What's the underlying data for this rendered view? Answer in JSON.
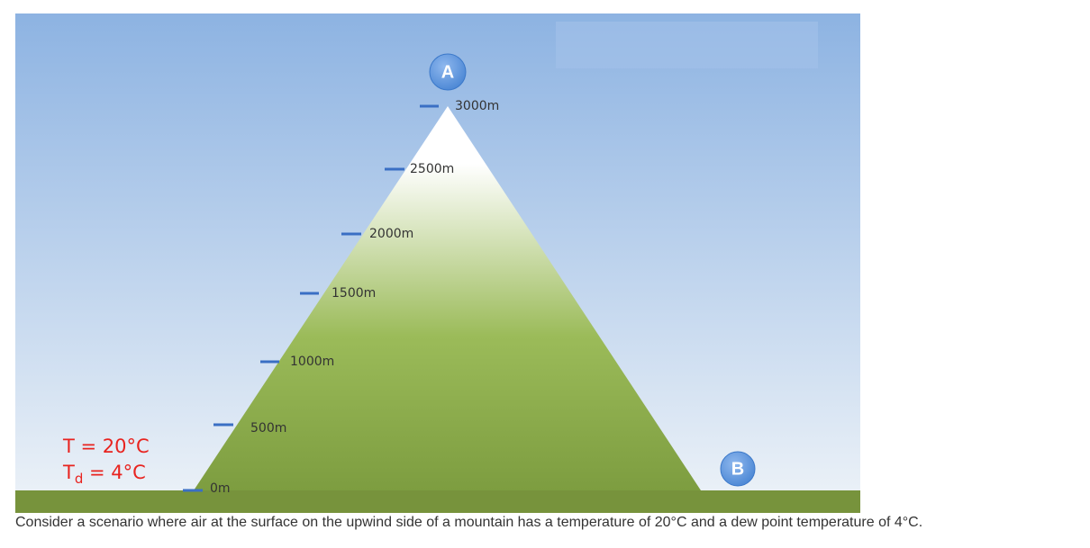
{
  "diagram": {
    "elevations": [
      "3000m",
      "2500m",
      "2000m",
      "1500m",
      "1000m",
      "500m",
      "0m"
    ],
    "points": [
      "A",
      "B"
    ],
    "surface": {
      "temperature": "T = 20°C",
      "dewpoint": {
        "symbol": "T",
        "subscript": "d",
        "rest": " = 4°C"
      }
    }
  },
  "caption": "Consider a scenario where air at the surface on the upwind side of a mountain has a temperature of 20°C and a dew point temperature of 4°C."
}
